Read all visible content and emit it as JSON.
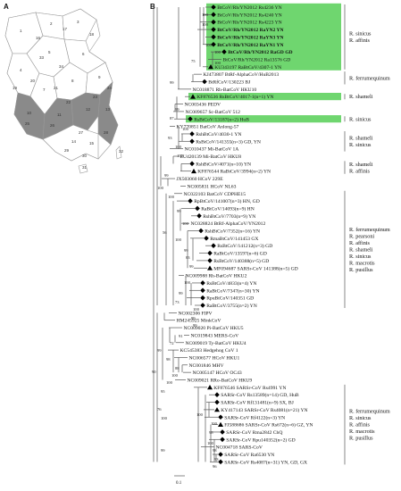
{
  "panels": {
    "a": "A",
    "b": "B"
  },
  "scale_label": "0.1",
  "map": {
    "numbers": [
      "1",
      "2",
      "3",
      "4",
      "5",
      "6",
      "7",
      "8",
      "9",
      "10",
      "11",
      "12",
      "13",
      "14",
      "15",
      "16",
      "17",
      "18",
      "19",
      "20",
      "21",
      "22",
      "23",
      "24",
      "25",
      "26",
      "27",
      "28",
      "29",
      "30",
      "31",
      "32",
      "33",
      "34"
    ]
  },
  "taxa": [
    {
      "label": "BtCoV/Rh/YN2012 Rs4236 YN",
      "marker": "diamond",
      "bold": false,
      "hl": true
    },
    {
      "label": "BtCoV/Rh/YN2012 Rs4240 YN",
      "marker": "diamond",
      "bold": false,
      "hl": true
    },
    {
      "label": "BtCoV/Rh/YN2012 Rs4223 YN",
      "marker": "diamond",
      "bold": false,
      "hl": true
    },
    {
      "label": "BtCoV/Rh/YN2012 RaYN2 YN",
      "marker": "diamond",
      "bold": true,
      "hl": true
    },
    {
      "label": "BtCoV/Rh/YN2012 RaYN3 YN",
      "marker": "diamond",
      "bold": true,
      "hl": true
    },
    {
      "label": "BtCoV/Rh/YN2012 RaYN1 YN",
      "marker": "diamond",
      "bold": true,
      "hl": true
    },
    {
      "label": "BtCoV/Rh/YN2012 RaGD GD",
      "marker": "diamond",
      "bold": true,
      "hl": true
    },
    {
      "label": "BtCoV/Rh/YN2012 Ra13576 GD",
      "marker": "none",
      "bold": false,
      "hl": true
    },
    {
      "label": "KU343197 RaBtCoV/4307-1 YN",
      "marker": "triangle",
      "bold": false,
      "hl": true
    },
    {
      "label": "KJ473807 BtRf-AlphaCoV/HuB2013",
      "marker": "none",
      "bold": false,
      "hl": false
    },
    {
      "label": "BtRfCoV/130223 BJ",
      "marker": "diamond",
      "bold": false,
      "hl": false
    },
    {
      "label": "NC018871 Rh-BatCoV HKU10",
      "marker": "none",
      "bold": false,
      "hl": false
    },
    {
      "label": "KF876536 RsBtCoV/4017-1(n=1) YN",
      "marker": "triangle",
      "bold": false,
      "hl": true
    },
    {
      "label": "NC003436 PEDV",
      "marker": "none",
      "bold": false,
      "hl": false
    },
    {
      "label": "NC009657 Sc-BatCoV 512",
      "marker": "none",
      "bold": false,
      "hl": false
    },
    {
      "label": "RsBtCoV/13187(n=2) HuB",
      "marker": "diamond",
      "bold": false,
      "hl": true
    },
    {
      "label": "KY770851 BatCoV Anlong-57",
      "marker": "none",
      "bold": false,
      "hl": false
    },
    {
      "label": "RshBtCoV/4030-1 YN",
      "marker": "diamond",
      "bold": false,
      "hl": false
    },
    {
      "label": "RsBtCoV/141355(n=3) GD, YN",
      "marker": "diamond",
      "bold": false,
      "hl": false
    },
    {
      "label": "NC010437 Mi-BatCoV 1A",
      "marker": "none",
      "bold": false,
      "hl": false
    },
    {
      "label": "EU420139 Mi-BatCoV HKU8",
      "marker": "none",
      "bold": false,
      "hl": false
    },
    {
      "label": "RshBtCoV/4071(n=10) YN",
      "marker": "diamond",
      "bold": false,
      "hl": false
    },
    {
      "label": "KF876544 RaBtCoV/3994(n=2) YN",
      "marker": "triangle",
      "bold": false,
      "hl": false
    },
    {
      "label": "JX503060 HCoV 229E",
      "marker": "none",
      "bold": false,
      "hl": false
    },
    {
      "label": "NC005831 HCoV NL63",
      "marker": "none",
      "bold": false,
      "hl": false
    },
    {
      "label": "NC022103 BatCoV CDPHE15",
      "marker": "none",
      "bold": false,
      "hl": false
    },
    {
      "label": "RpBtCoV/141007(n=3) HN, GD",
      "marker": "diamond",
      "bold": false,
      "hl": false
    },
    {
      "label": "RaBtCoV/14093(n=9) HN",
      "marker": "diamond",
      "bold": false,
      "hl": false
    },
    {
      "label": "RshBtCoV/7703(n=9) YN",
      "marker": "diamond",
      "bold": false,
      "hl": false
    },
    {
      "label": "NC028824 BtRf-AlphaCoV/YN2012",
      "marker": "none",
      "bold": false,
      "hl": false
    },
    {
      "label": "RshBtCoV/7352(n=16) YN",
      "marker": "diamond",
      "bold": false,
      "hl": false
    },
    {
      "label": "RmaBtCoV/141453 GX",
      "marker": "diamond",
      "bold": false,
      "hl": false
    },
    {
      "label": "RsBtCoV/141212(n=3) GD",
      "marker": "diamond",
      "bold": false,
      "hl": false
    },
    {
      "label": "RaBtCoV/13597(n=6) GD",
      "marker": "diamond",
      "bold": false,
      "hl": false
    },
    {
      "label": "RsBtCoV/140388(n=5) GD",
      "marker": "diamond",
      "bold": false,
      "hl": false
    },
    {
      "label": "MF094687 SARSr-CoV 141388(n=5) GD",
      "marker": "triangle",
      "bold": false,
      "hl": false
    },
    {
      "label": "NC009988 Rh-BatCoV HKU2",
      "marker": "none",
      "bold": false,
      "hl": false
    },
    {
      "label": "RsBtCoV/4833(n=4) YN",
      "marker": "diamond",
      "bold": false,
      "hl": false
    },
    {
      "label": "RaBtCoV/7347(n=30) YN",
      "marker": "diamond",
      "bold": false,
      "hl": false
    },
    {
      "label": "RpuBtCoV/140351 GD",
      "marker": "diamond",
      "bold": false,
      "hl": false
    },
    {
      "label": "RaBtCoV/3755(n=2) YN",
      "marker": "diamond",
      "bold": false,
      "hl": false
    },
    {
      "label": "NC002306 FIPV",
      "marker": "none",
      "bold": false,
      "hl": false
    },
    {
      "label": "HM245925 MinkCoV",
      "marker": "none",
      "bold": false,
      "hl": false
    },
    {
      "label": "NC009020 Pi-BatCoV HKU5",
      "marker": "none",
      "bold": false,
      "hl": false
    },
    {
      "label": "NC019843 MERS-CoV",
      "marker": "none",
      "bold": false,
      "hl": false
    },
    {
      "label": "NC009019 Ty-BatCoV HKU4",
      "marker": "none",
      "bold": false,
      "hl": false
    },
    {
      "label": "KC545383 Hedgehog CoV 1",
      "marker": "none",
      "bold": false,
      "hl": false
    },
    {
      "label": "NC006577 HCoV HKU1",
      "marker": "none",
      "bold": false,
      "hl": false
    },
    {
      "label": "NC001846 MHV",
      "marker": "none",
      "bold": false,
      "hl": false
    },
    {
      "label": "NC005147 HCoV OC43",
      "marker": "none",
      "bold": false,
      "hl": false
    },
    {
      "label": "NC009021 RRo-BatCoV HKU9",
      "marker": "none",
      "bold": false,
      "hl": false
    },
    {
      "label": "KF876546 SARSr-CoV Rs4991 YN",
      "marker": "triangle",
      "bold": false,
      "hl": false
    },
    {
      "label": "SARSr-CoV Rs13589(n=14) GD, HuB",
      "marker": "diamond",
      "bold": false,
      "hl": false
    },
    {
      "label": "SARSr-CoV Rf131481(n=9) SX, BJ",
      "marker": "diamond",
      "bold": false,
      "hl": false
    },
    {
      "label": "KY417143 SARSr-CoV Rs4081(n=21) YN",
      "marker": "triangle",
      "bold": false,
      "hl": false
    },
    {
      "label": "SARSr-CoV Rf4122(n=3) YN",
      "marker": "diamond",
      "bold": false,
      "hl": false
    },
    {
      "label": "FJ588686 SARSr-CoV Rs672(n=6) GZ, YN",
      "marker": "triangle",
      "bold": false,
      "hl": false
    },
    {
      "label": "SARSr-CoV Rma2842 ChQ",
      "marker": "diamond",
      "bold": false,
      "hl": false
    },
    {
      "label": "SARSr-CoV Rpu140352(n=2) GD",
      "marker": "diamond",
      "bold": false,
      "hl": false
    },
    {
      "label": "NC004718 SARS-CoV",
      "marker": "none",
      "bold": false,
      "hl": false
    },
    {
      "label": "SARSr-CoV Ra6530 YN",
      "marker": "diamond",
      "bold": false,
      "hl": false
    },
    {
      "label": "SARSr-CoV Rs4087(n=31) YN, GD, GX",
      "marker": "diamond",
      "bold": false,
      "hl": false
    }
  ],
  "bootstrap": [
    "100",
    "100",
    "75",
    "100",
    "100",
    "100",
    "99",
    "99",
    "87",
    "100",
    "93",
    "100",
    "100",
    "99",
    "100",
    "100",
    "99",
    "100",
    "56",
    "100",
    "99",
    "83",
    "99",
    "100",
    "99",
    "73",
    "100",
    "99",
    "99",
    "91",
    "72",
    "99",
    "98",
    "88",
    "100",
    "100",
    "95",
    "76",
    "100",
    "100",
    "100",
    "98",
    "100",
    "98",
    "93",
    "96",
    "99",
    "90"
  ],
  "host_groups": [
    {
      "lines": [
        "R. sinicus",
        "R. affinis"
      ]
    },
    {
      "lines": [
        "R. ferrumequinum"
      ]
    },
    {
      "lines": [
        "R. shameli"
      ]
    },
    {
      "lines": [
        "R. sinicus"
      ]
    },
    {
      "lines": [
        "R. shameli",
        "R. sinicus"
      ]
    },
    {
      "lines": [
        "R. shameli",
        "R. affinis"
      ]
    },
    {
      "lines": [
        "R. ferrumequinum",
        "R. pearsoni",
        "R. affinis",
        "R. shameli",
        "R. sinicus",
        "R. macrotis",
        "R. pusillus"
      ]
    },
    {
      "lines": [
        "R. ferrumequinum",
        "R. sinicus",
        "R. affinis",
        "R. macrotis",
        "R. pusillus"
      ]
    }
  ]
}
